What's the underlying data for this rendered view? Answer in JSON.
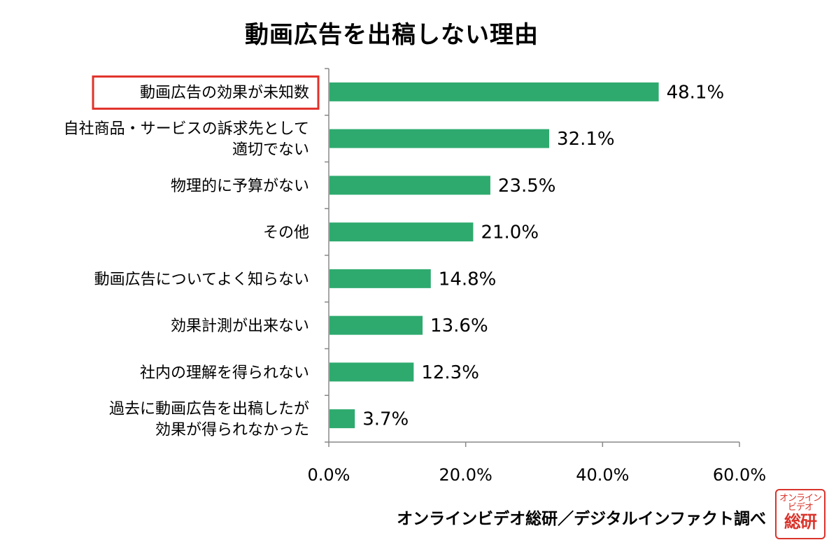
{
  "chart_data": {
    "type": "bar",
    "orientation": "horizontal",
    "title": "動画広告を出稿しない理由",
    "categories": [
      [
        "動画広告の効果が未知数"
      ],
      [
        "自社商品・サービスの訴求先として",
        "適切でない"
      ],
      [
        "物理的に予算がない"
      ],
      [
        "その他"
      ],
      [
        "動画広告についてよく知らない"
      ],
      [
        "効果計測が出来ない"
      ],
      [
        "社内の理解を得られない"
      ],
      [
        "過去に動画広告を出稿したが",
        "効果が得られなかった"
      ]
    ],
    "values": [
      48.1,
      32.1,
      23.5,
      21.0,
      14.8,
      13.6,
      12.3,
      3.7
    ],
    "value_labels": [
      "48.1%",
      "32.1%",
      "23.5%",
      "21.0%",
      "14.8%",
      "13.6%",
      "12.3%",
      "3.7%"
    ],
    "xlim": [
      0,
      60
    ],
    "xticks": [
      0,
      20,
      40,
      60
    ],
    "xtick_labels": [
      "0.0%",
      "20.0%",
      "40.0%",
      "60.0%"
    ],
    "highlighted_category_index": 0,
    "bar_color": "#2eaa6e",
    "highlight_color": "#e0312a",
    "grid": false,
    "legend": "none"
  },
  "source_note": "オンラインビデオ総研／デジタルインファクト調べ",
  "logo": {
    "line1": "オンライン",
    "line2": "ビデオ",
    "line3": "総研"
  }
}
